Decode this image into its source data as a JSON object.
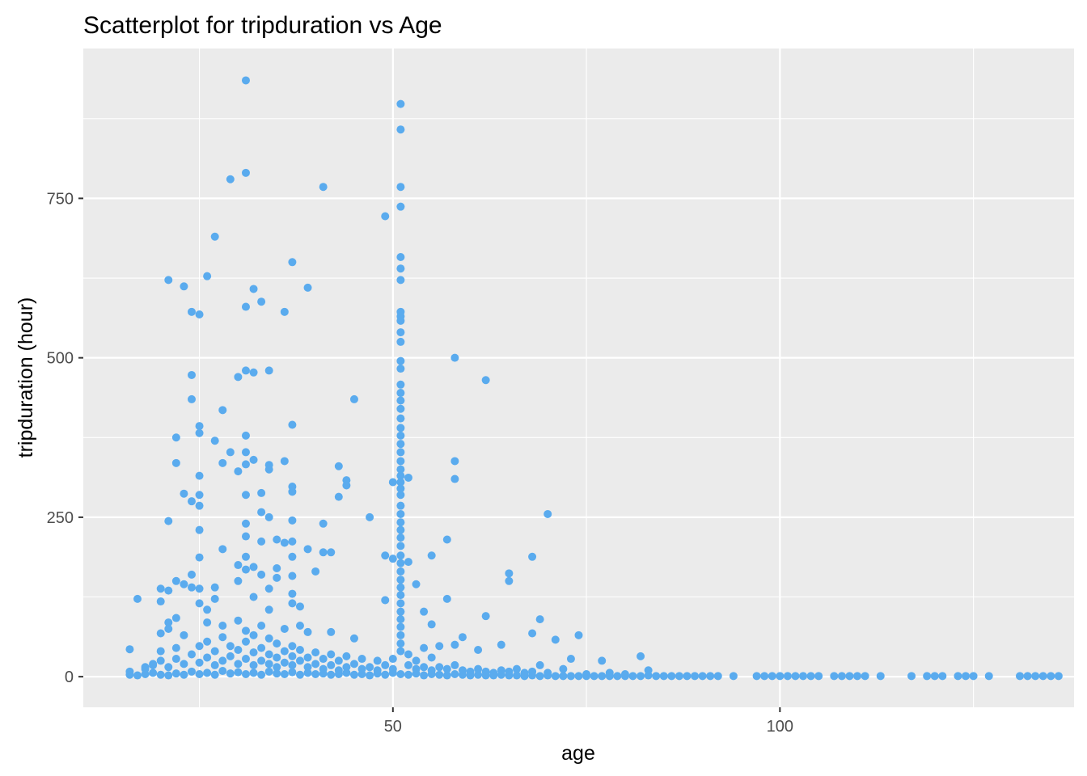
{
  "chart_data": {
    "type": "scatter",
    "title": "Scatterplot for tripduration vs Age",
    "xlabel": "age",
    "ylabel": "tripduration (hour)",
    "xlim": [
      10,
      138
    ],
    "ylim": [
      -48,
      985
    ],
    "x_ticks": [
      50,
      100
    ],
    "y_ticks": [
      0,
      250,
      500,
      750
    ],
    "x_ticks_labels": [
      "50",
      "100"
    ],
    "y_ticks_labels": [
      "0",
      "250",
      "500",
      "750"
    ],
    "grid": true,
    "colors": {
      "point": "#5AABEE",
      "panel": "#EBEBEB",
      "grid": "#FFFFFF",
      "tick": "#333333"
    },
    "points": [
      [
        16,
        43
      ],
      [
        16,
        8
      ],
      [
        17,
        122
      ],
      [
        18,
        15
      ],
      [
        19,
        20
      ],
      [
        20,
        138
      ],
      [
        20,
        68
      ],
      [
        20,
        40
      ],
      [
        20,
        118
      ],
      [
        21,
        622
      ],
      [
        21,
        244
      ],
      [
        21,
        135
      ],
      [
        21,
        85
      ],
      [
        21,
        75
      ],
      [
        22,
        375
      ],
      [
        22,
        335
      ],
      [
        22,
        150
      ],
      [
        22,
        92
      ],
      [
        22,
        45
      ],
      [
        23,
        612
      ],
      [
        23,
        287
      ],
      [
        23,
        145
      ],
      [
        23,
        65
      ],
      [
        24,
        572
      ],
      [
        24,
        473
      ],
      [
        24,
        435
      ],
      [
        24,
        275
      ],
      [
        24,
        160
      ],
      [
        24,
        140
      ],
      [
        25,
        568
      ],
      [
        25,
        393
      ],
      [
        25,
        382
      ],
      [
        25,
        315
      ],
      [
        25,
        285
      ],
      [
        25,
        268
      ],
      [
        25,
        230
      ],
      [
        25,
        187
      ],
      [
        25,
        138
      ],
      [
        25,
        115
      ],
      [
        26,
        628
      ],
      [
        26,
        105
      ],
      [
        26,
        85
      ],
      [
        27,
        690
      ],
      [
        27,
        370
      ],
      [
        27,
        140
      ],
      [
        27,
        122
      ],
      [
        28,
        418
      ],
      [
        28,
        335
      ],
      [
        28,
        200
      ],
      [
        28,
        80
      ],
      [
        29,
        780
      ],
      [
        29,
        352
      ],
      [
        30,
        470
      ],
      [
        30,
        322
      ],
      [
        30,
        175
      ],
      [
        30,
        150
      ],
      [
        31,
        935
      ],
      [
        31,
        790
      ],
      [
        31,
        580
      ],
      [
        31,
        480
      ],
      [
        31,
        378
      ],
      [
        31,
        352
      ],
      [
        31,
        333
      ],
      [
        31,
        285
      ],
      [
        31,
        240
      ],
      [
        31,
        220
      ],
      [
        31,
        188
      ],
      [
        31,
        168
      ],
      [
        32,
        608
      ],
      [
        32,
        477
      ],
      [
        32,
        340
      ],
      [
        32,
        172
      ],
      [
        32,
        125
      ],
      [
        33,
        588
      ],
      [
        33,
        288
      ],
      [
        33,
        258
      ],
      [
        33,
        212
      ],
      [
        33,
        160
      ],
      [
        34,
        480
      ],
      [
        34,
        332
      ],
      [
        34,
        325
      ],
      [
        34,
        250
      ],
      [
        34,
        138
      ],
      [
        34,
        105
      ],
      [
        35,
        215
      ],
      [
        35,
        170
      ],
      [
        35,
        155
      ],
      [
        36,
        572
      ],
      [
        36,
        338
      ],
      [
        36,
        210
      ],
      [
        37,
        650
      ],
      [
        37,
        395
      ],
      [
        37,
        298
      ],
      [
        37,
        290
      ],
      [
        37,
        245
      ],
      [
        37,
        212
      ],
      [
        37,
        188
      ],
      [
        37,
        158
      ],
      [
        37,
        130
      ],
      [
        37,
        115
      ],
      [
        38,
        110
      ],
      [
        38,
        80
      ],
      [
        39,
        610
      ],
      [
        39,
        200
      ],
      [
        39,
        70
      ],
      [
        40,
        165
      ],
      [
        41,
        768
      ],
      [
        41,
        240
      ],
      [
        41,
        195
      ],
      [
        42,
        195
      ],
      [
        42,
        70
      ],
      [
        43,
        330
      ],
      [
        43,
        282
      ],
      [
        44,
        308
      ],
      [
        44,
        300
      ],
      [
        45,
        435
      ],
      [
        45,
        60
      ],
      [
        47,
        250
      ],
      [
        49,
        722
      ],
      [
        49,
        190
      ],
      [
        49,
        120
      ],
      [
        50,
        305
      ],
      [
        50,
        185
      ],
      [
        51,
        898
      ],
      [
        51,
        858
      ],
      [
        51,
        768
      ],
      [
        51,
        737
      ],
      [
        51,
        658
      ],
      [
        51,
        640
      ],
      [
        51,
        622
      ],
      [
        51,
        572
      ],
      [
        51,
        565
      ],
      [
        51,
        558
      ],
      [
        51,
        540
      ],
      [
        51,
        525
      ],
      [
        51,
        495
      ],
      [
        51,
        483
      ],
      [
        51,
        458
      ],
      [
        51,
        445
      ],
      [
        51,
        433
      ],
      [
        51,
        420
      ],
      [
        51,
        405
      ],
      [
        51,
        390
      ],
      [
        51,
        378
      ],
      [
        51,
        365
      ],
      [
        51,
        352
      ],
      [
        51,
        338
      ],
      [
        51,
        325
      ],
      [
        51,
        315
      ],
      [
        51,
        305
      ],
      [
        51,
        295
      ],
      [
        51,
        285
      ],
      [
        51,
        268
      ],
      [
        51,
        255
      ],
      [
        51,
        242
      ],
      [
        51,
        230
      ],
      [
        51,
        218
      ],
      [
        51,
        205
      ],
      [
        51,
        190
      ],
      [
        51,
        178
      ],
      [
        51,
        165
      ],
      [
        51,
        152
      ],
      [
        51,
        140
      ],
      [
        51,
        128
      ],
      [
        51,
        115
      ],
      [
        51,
        102
      ],
      [
        51,
        90
      ],
      [
        51,
        78
      ],
      [
        51,
        65
      ],
      [
        51,
        52
      ],
      [
        51,
        40
      ],
      [
        52,
        312
      ],
      [
        52,
        180
      ],
      [
        53,
        145
      ],
      [
        54,
        102
      ],
      [
        55,
        190
      ],
      [
        55,
        82
      ],
      [
        57,
        215
      ],
      [
        57,
        122
      ],
      [
        58,
        500
      ],
      [
        58,
        338
      ],
      [
        58,
        310
      ],
      [
        58,
        50
      ],
      [
        59,
        62
      ],
      [
        61,
        42
      ],
      [
        62,
        465
      ],
      [
        62,
        95
      ],
      [
        64,
        50
      ],
      [
        65,
        162
      ],
      [
        65,
        150
      ],
      [
        68,
        188
      ],
      [
        68,
        68
      ],
      [
        69,
        90
      ],
      [
        70,
        255
      ],
      [
        71,
        58
      ],
      [
        73,
        28
      ],
      [
        74,
        65
      ],
      [
        77,
        25
      ],
      [
        82,
        32
      ],
      [
        83,
        10
      ],
      [
        16,
        3
      ],
      [
        17,
        2
      ],
      [
        18,
        4
      ],
      [
        19,
        6
      ],
      [
        20,
        3
      ],
      [
        21,
        2
      ],
      [
        22,
        5
      ],
      [
        23,
        3
      ],
      [
        24,
        8
      ],
      [
        25,
        4
      ],
      [
        26,
        6
      ],
      [
        27,
        3
      ],
      [
        28,
        9
      ],
      [
        29,
        5
      ],
      [
        30,
        7
      ],
      [
        31,
        4
      ],
      [
        32,
        6
      ],
      [
        33,
        3
      ],
      [
        34,
        8
      ],
      [
        35,
        5
      ],
      [
        36,
        4
      ],
      [
        37,
        7
      ],
      [
        38,
        3
      ],
      [
        39,
        6
      ],
      [
        40,
        4
      ],
      [
        41,
        5
      ],
      [
        42,
        3
      ],
      [
        43,
        4
      ],
      [
        44,
        6
      ],
      [
        45,
        3
      ],
      [
        46,
        4
      ],
      [
        47,
        2
      ],
      [
        48,
        5
      ],
      [
        49,
        3
      ],
      [
        50,
        6
      ],
      [
        51,
        4
      ],
      [
        52,
        3
      ],
      [
        53,
        5
      ],
      [
        54,
        2
      ],
      [
        55,
        4
      ],
      [
        56,
        3
      ],
      [
        57,
        2
      ],
      [
        58,
        4
      ],
      [
        59,
        3
      ],
      [
        60,
        2
      ],
      [
        61,
        3
      ],
      [
        62,
        2
      ],
      [
        63,
        2
      ],
      [
        64,
        3
      ],
      [
        65,
        2
      ],
      [
        66,
        2
      ],
      [
        67,
        1
      ],
      [
        68,
        2
      ],
      [
        69,
        1
      ],
      [
        70,
        2
      ],
      [
        71,
        1
      ],
      [
        72,
        1
      ],
      [
        73,
        1
      ],
      [
        74,
        1
      ],
      [
        75,
        1
      ],
      [
        76,
        1
      ],
      [
        77,
        1
      ],
      [
        78,
        1
      ],
      [
        79,
        1
      ],
      [
        80,
        1
      ],
      [
        81,
        1
      ],
      [
        82,
        1
      ],
      [
        83,
        2
      ],
      [
        84,
        1
      ],
      [
        85,
        1
      ],
      [
        86,
        1
      ],
      [
        87,
        1
      ],
      [
        88,
        1
      ],
      [
        89,
        1
      ],
      [
        90,
        1
      ],
      [
        91,
        1
      ],
      [
        92,
        1
      ],
      [
        94,
        1
      ],
      [
        97,
        1
      ],
      [
        98,
        1
      ],
      [
        99,
        1
      ],
      [
        100,
        1
      ],
      [
        101,
        1
      ],
      [
        102,
        1
      ],
      [
        103,
        1
      ],
      [
        104,
        1
      ],
      [
        105,
        1
      ],
      [
        107,
        1
      ],
      [
        108,
        1
      ],
      [
        109,
        1
      ],
      [
        110,
        1
      ],
      [
        111,
        1
      ],
      [
        113,
        1
      ],
      [
        117,
        1
      ],
      [
        119,
        1
      ],
      [
        120,
        1
      ],
      [
        121,
        1
      ],
      [
        123,
        1
      ],
      [
        124,
        1
      ],
      [
        125,
        1
      ],
      [
        127,
        1
      ],
      [
        131,
        1
      ],
      [
        132,
        1
      ],
      [
        133,
        1
      ],
      [
        134,
        1
      ],
      [
        135,
        1
      ],
      [
        136,
        1
      ],
      [
        18,
        12
      ],
      [
        19,
        18
      ],
      [
        20,
        25
      ],
      [
        21,
        15
      ],
      [
        22,
        28
      ],
      [
        23,
        20
      ],
      [
        24,
        35
      ],
      [
        25,
        22
      ],
      [
        25,
        48
      ],
      [
        26,
        30
      ],
      [
        26,
        55
      ],
      [
        27,
        18
      ],
      [
        27,
        40
      ],
      [
        28,
        25
      ],
      [
        28,
        62
      ],
      [
        29,
        32
      ],
      [
        29,
        48
      ],
      [
        30,
        20
      ],
      [
        30,
        42
      ],
      [
        30,
        88
      ],
      [
        31,
        28
      ],
      [
        31,
        55
      ],
      [
        31,
        72
      ],
      [
        32,
        18
      ],
      [
        32,
        38
      ],
      [
        32,
        65
      ],
      [
        33,
        25
      ],
      [
        33,
        45
      ],
      [
        33,
        80
      ],
      [
        34,
        20
      ],
      [
        34,
        35
      ],
      [
        34,
        60
      ],
      [
        35,
        15
      ],
      [
        35,
        30
      ],
      [
        35,
        52
      ],
      [
        36,
        22
      ],
      [
        36,
        40
      ],
      [
        36,
        75
      ],
      [
        37,
        18
      ],
      [
        37,
        32
      ],
      [
        37,
        48
      ],
      [
        38,
        25
      ],
      [
        38,
        42
      ],
      [
        39,
        15
      ],
      [
        39,
        30
      ],
      [
        40,
        20
      ],
      [
        40,
        38
      ],
      [
        41,
        12
      ],
      [
        41,
        28
      ],
      [
        42,
        18
      ],
      [
        42,
        35
      ],
      [
        43,
        10
      ],
      [
        43,
        25
      ],
      [
        44,
        15
      ],
      [
        44,
        32
      ],
      [
        45,
        20
      ],
      [
        46,
        12
      ],
      [
        46,
        28
      ],
      [
        47,
        15
      ],
      [
        48,
        10
      ],
      [
        48,
        25
      ],
      [
        49,
        18
      ],
      [
        50,
        12
      ],
      [
        50,
        28
      ],
      [
        52,
        18
      ],
      [
        52,
        35
      ],
      [
        53,
        12
      ],
      [
        53,
        25
      ],
      [
        54,
        15
      ],
      [
        54,
        45
      ],
      [
        55,
        10
      ],
      [
        55,
        30
      ],
      [
        56,
        15
      ],
      [
        56,
        48
      ],
      [
        57,
        12
      ],
      [
        58,
        18
      ],
      [
        59,
        10
      ],
      [
        60,
        8
      ],
      [
        61,
        12
      ],
      [
        62,
        8
      ],
      [
        63,
        6
      ],
      [
        64,
        10
      ],
      [
        65,
        8
      ],
      [
        66,
        12
      ],
      [
        67,
        6
      ],
      [
        68,
        8
      ],
      [
        69,
        18
      ],
      [
        70,
        6
      ],
      [
        72,
        12
      ],
      [
        75,
        4
      ],
      [
        78,
        6
      ],
      [
        80,
        4
      ]
    ]
  }
}
